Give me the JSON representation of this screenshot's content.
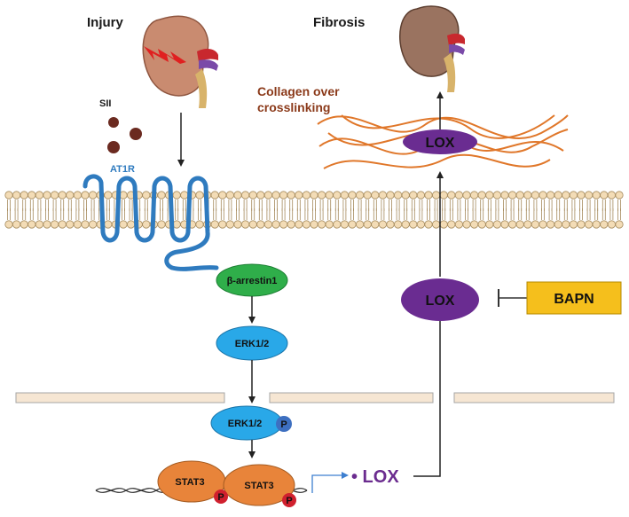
{
  "labels": {
    "injury": "Injury",
    "fibrosis": "Fibrosis",
    "sii": "SII",
    "at1r": "AT1R",
    "collagen_line1": "Collagen over",
    "collagen_line2": "crosslinking",
    "lox_top": "LOX",
    "lox_mid": "LOX",
    "bapn": "BAPN",
    "beta_arrestin": "β-arrestin1",
    "erk_1": "ERK1/2",
    "erk_2": "ERK1/2",
    "phospho": "P",
    "stat3_a": "STAT3",
    "stat3_b": "STAT3",
    "lox_gene": "• LOX"
  },
  "colors": {
    "membrane_head": "#f3dcb6",
    "membrane_stroke": "#a58a5c",
    "receptor": "#2f7bbf",
    "beta_arrestin": "#2fae4a",
    "erk": "#29a8e8",
    "stat3": "#e8843a",
    "lox": "#6a2c91",
    "bapn": "#f5bf1c",
    "collagen": "#e0772a",
    "nucleus": "#f6e6d3",
    "phospho_red": "#d0202e",
    "phospho_blue": "#3d6fc0",
    "kidney": "#c78a6e",
    "sii_dot": "#6b2a20"
  }
}
